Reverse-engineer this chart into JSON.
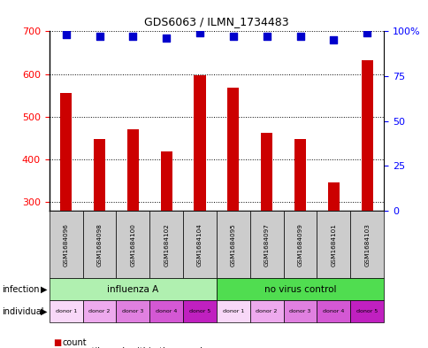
{
  "title": "GDS6063 / ILMN_1734483",
  "samples": [
    "GSM1684096",
    "GSM1684098",
    "GSM1684100",
    "GSM1684102",
    "GSM1684104",
    "GSM1684095",
    "GSM1684097",
    "GSM1684099",
    "GSM1684101",
    "GSM1684103"
  ],
  "counts": [
    555,
    448,
    470,
    418,
    598,
    568,
    462,
    448,
    345,
    632
  ],
  "percentile_ranks": [
    98,
    97,
    97,
    96,
    99,
    97,
    97,
    97,
    95,
    99
  ],
  "ylim_left": [
    280,
    700
  ],
  "ylim_right": [
    0,
    100
  ],
  "yticks_left": [
    300,
    400,
    500,
    600,
    700
  ],
  "yticks_right": [
    0,
    25,
    50,
    75,
    100
  ],
  "infection_groups": [
    {
      "label": "influenza A",
      "start": 0,
      "end": 5,
      "color": "#b0f0b0"
    },
    {
      "label": "no virus control",
      "start": 5,
      "end": 10,
      "color": "#50dd50"
    }
  ],
  "individual_labels": [
    "donor 1",
    "donor 2",
    "donor 3",
    "donor 4",
    "donor 5",
    "donor 1",
    "donor 2",
    "donor 3",
    "donor 4",
    "donor 5"
  ],
  "ind_colors": [
    "#f8d8f8",
    "#eeaaee",
    "#e080e0",
    "#d458d4",
    "#c020c0",
    "#f8d8f8",
    "#eeaaee",
    "#e080e0",
    "#d458d4",
    "#c020c0"
  ],
  "bar_color": "#cc0000",
  "dot_color": "#0000cc",
  "sample_bg_color": "#cccccc",
  "bar_width": 0.35
}
